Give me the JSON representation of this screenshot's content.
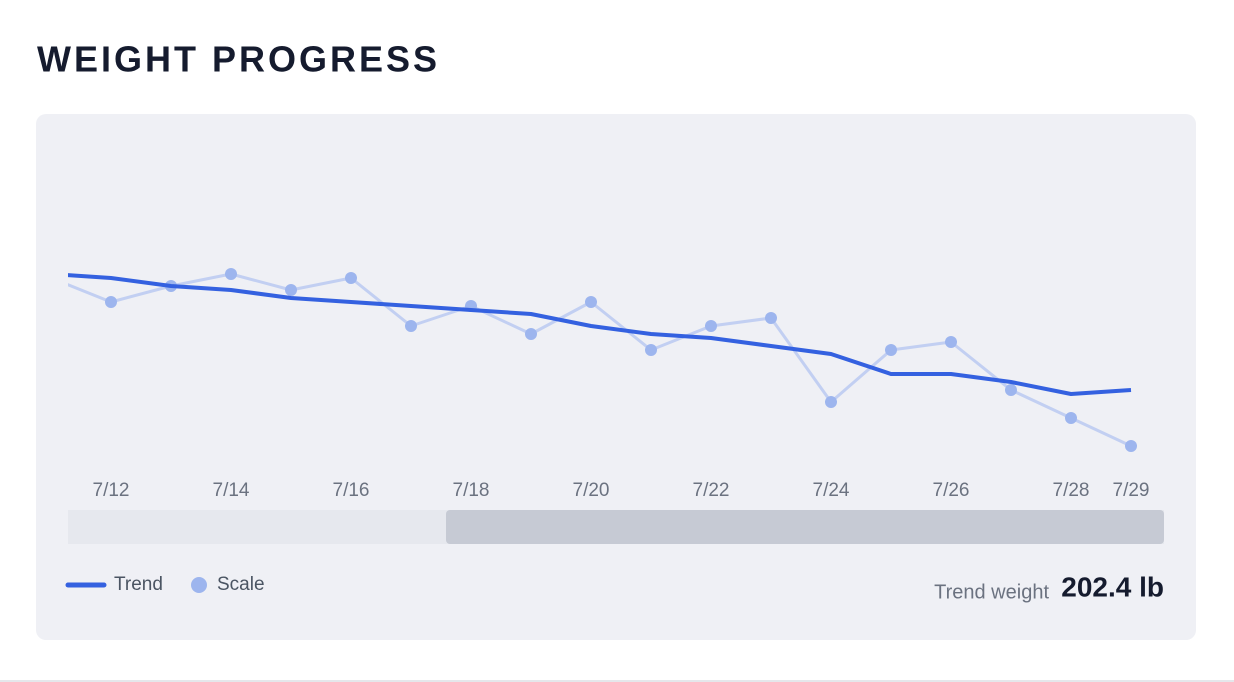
{
  "header": {
    "title": "WEIGHT PROGRESS"
  },
  "chart_data": {
    "type": "line",
    "categories": [
      null,
      "7/12",
      null,
      "7/14",
      null,
      "7/16",
      null,
      "7/18",
      null,
      "7/20",
      null,
      "7/22",
      null,
      "7/24",
      null,
      "7/26",
      null,
      "7/28",
      "7/29"
    ],
    "series": [
      {
        "name": "Trend",
        "color": "#3461e0",
        "values": [
          205.3,
          205.2,
          205.0,
          204.9,
          204.7,
          204.6,
          204.5,
          204.4,
          204.3,
          204.0,
          203.8,
          203.7,
          203.5,
          203.3,
          202.8,
          202.8,
          202.6,
          202.3,
          202.4
        ]
      },
      {
        "name": "Scale",
        "color": "#9db5ee",
        "values": [
          205.2,
          204.6,
          205.0,
          205.3,
          204.9,
          205.2,
          204.0,
          204.5,
          203.8,
          204.6,
          203.4,
          204.0,
          204.2,
          202.1,
          203.4,
          203.6,
          202.4,
          201.7,
          201.0
        ]
      }
    ],
    "ylim": [
      200,
      207
    ]
  },
  "summary": {
    "label": "Trend weight",
    "value": "202.4 lb"
  }
}
